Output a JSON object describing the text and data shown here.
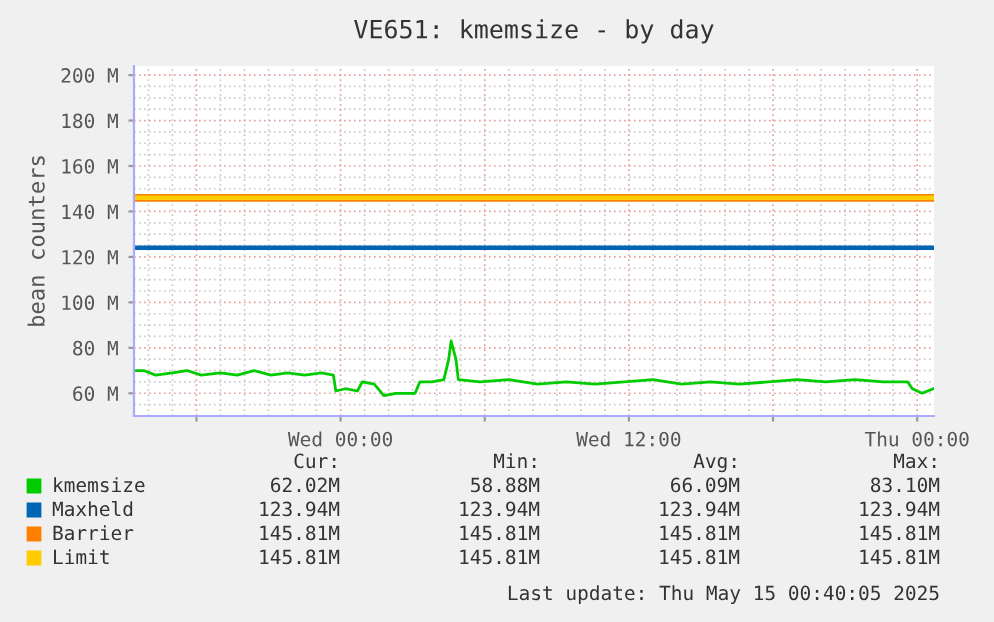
{
  "chart_data": {
    "type": "line",
    "title": "VE651: kmemsize - by day",
    "ylabel": "bean counters",
    "xlim": [
      "2025-05-13T15:24",
      "2025-05-15T00:42"
    ],
    "ylim": [
      50,
      204
    ],
    "xticks": [
      {
        "value": "2025-05-13T18:00",
        "label": null
      },
      {
        "value": "2025-05-14T00:00",
        "label": "Wed 00:00"
      },
      {
        "value": "2025-05-14T06:00",
        "label": null
      },
      {
        "value": "2025-05-14T12:00",
        "label": "Wed 12:00"
      },
      {
        "value": "2025-05-14T18:00",
        "label": null
      },
      {
        "value": "2025-05-15T00:00",
        "label": "Thu 00:00"
      }
    ],
    "yticks": [
      {
        "value": 60,
        "label": "60 M"
      },
      {
        "value": 80,
        "label": "80 M"
      },
      {
        "value": 100,
        "label": "100 M"
      },
      {
        "value": 120,
        "label": "120 M"
      },
      {
        "value": 140,
        "label": "140 M"
      },
      {
        "value": 160,
        "label": "160 M"
      },
      {
        "value": 180,
        "label": "180 M"
      },
      {
        "value": 200,
        "label": "200 M"
      }
    ],
    "grid": true,
    "legend": "bottom",
    "series": [
      {
        "name": "kmemsize",
        "color": "#00cc00",
        "x": [
          "2025-05-13T15:24",
          "2025-05-13T15:48",
          "2025-05-13T16:18",
          "2025-05-13T17:00",
          "2025-05-13T17:36",
          "2025-05-13T18:12",
          "2025-05-13T19:00",
          "2025-05-13T19:42",
          "2025-05-13T20:24",
          "2025-05-13T21:06",
          "2025-05-13T21:48",
          "2025-05-13T22:30",
          "2025-05-13T23:12",
          "2025-05-13T23:42",
          "2025-05-13T23:48",
          "2025-05-14T00:12",
          "2025-05-14T00:42",
          "2025-05-14T00:54",
          "2025-05-14T01:24",
          "2025-05-14T01:48",
          "2025-05-14T02:18",
          "2025-05-14T02:48",
          "2025-05-14T03:06",
          "2025-05-14T03:18",
          "2025-05-14T03:48",
          "2025-05-14T04:18",
          "2025-05-14T04:30",
          "2025-05-14T04:36",
          "2025-05-14T04:48",
          "2025-05-14T04:54",
          "2025-05-14T05:48",
          "2025-05-14T07:00",
          "2025-05-14T08:12",
          "2025-05-14T09:24",
          "2025-05-14T10:36",
          "2025-05-14T11:48",
          "2025-05-14T13:00",
          "2025-05-14T14:12",
          "2025-05-14T15:24",
          "2025-05-14T16:36",
          "2025-05-14T17:48",
          "2025-05-14T19:00",
          "2025-05-14T20:12",
          "2025-05-14T21:24",
          "2025-05-14T22:36",
          "2025-05-14T23:36",
          "2025-05-14T23:48",
          "2025-05-15T00:12",
          "2025-05-15T00:40"
        ],
        "values": [
          70,
          70,
          68,
          69,
          70,
          68,
          69,
          68,
          70,
          68,
          69,
          68,
          69,
          68,
          61,
          62,
          61,
          65,
          64,
          59,
          60,
          60,
          60,
          65,
          65,
          66,
          75,
          83,
          75,
          66,
          65,
          66,
          64,
          65,
          64,
          65,
          66,
          64,
          65,
          64,
          65,
          66,
          65,
          66,
          65,
          65,
          62,
          60,
          62
        ]
      },
      {
        "name": "Maxheld",
        "color": "#0066b3",
        "x": [
          "2025-05-13T15:24",
          "2025-05-15T00:40"
        ],
        "values": [
          124,
          124
        ]
      },
      {
        "name": "Barrier",
        "color": "#ff8000",
        "x": [
          "2025-05-13T15:24",
          "2025-05-15T00:40"
        ],
        "values": [
          146,
          146
        ]
      },
      {
        "name": "Limit",
        "color": "#ffcc00",
        "x": [
          "2025-05-13T15:24",
          "2025-05-15T00:40"
        ],
        "values": [
          146,
          146
        ]
      }
    ],
    "annotations": [
      "Cur:",
      "Min:",
      "Avg:",
      "Max:",
      "62.02M",
      "58.88M",
      "66.09M",
      "83.10M",
      "123.94M",
      "123.94M",
      "123.94M",
      "123.94M",
      "145.81M",
      "145.81M",
      "145.81M",
      "145.81M",
      "145.81M",
      "145.81M",
      "145.81M",
      "145.81M",
      "Last update: Thu May 15 00:40:05 2025"
    ]
  }
}
